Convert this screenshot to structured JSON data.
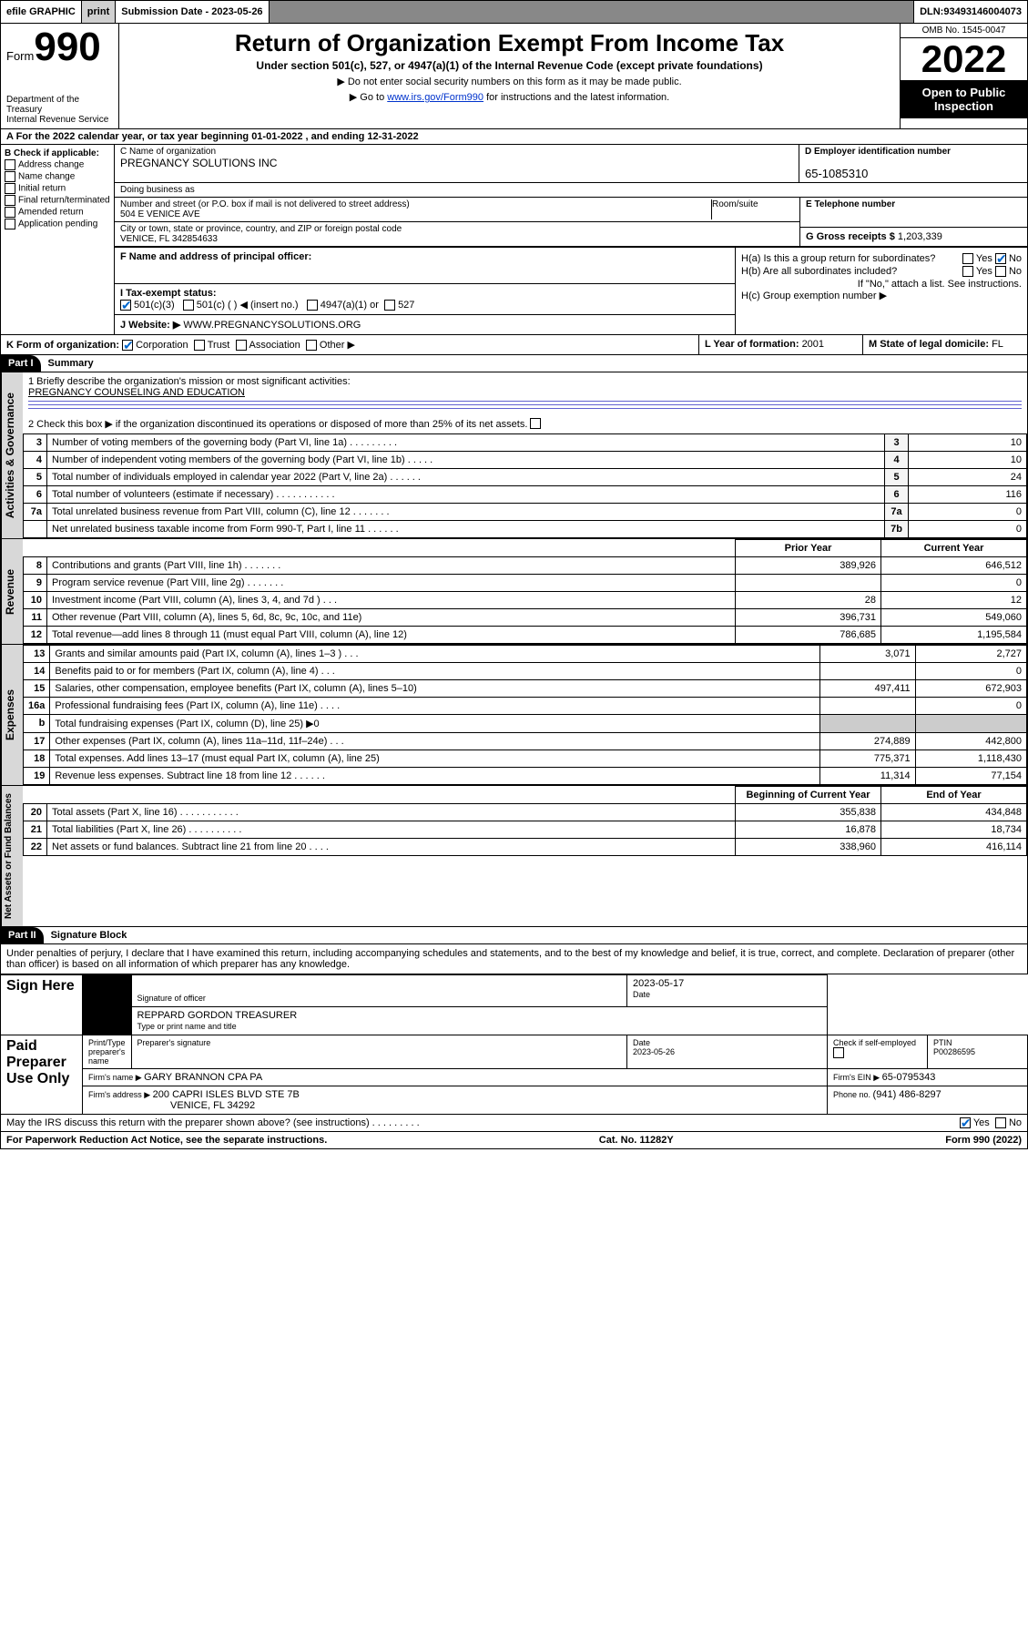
{
  "topbar": {
    "efile": "efile GRAPHIC",
    "print": "print",
    "subdate_label": "Submission Date - ",
    "subdate": "2023-05-26",
    "dln_label": "DLN: ",
    "dln": "93493146004073"
  },
  "header": {
    "form_word": "Form",
    "form_num": "990",
    "dept": "Department of the Treasury",
    "irs": "Internal Revenue Service",
    "title": "Return of Organization Exempt From Income Tax",
    "sub": "Under section 501(c), 527, or 4947(a)(1) of the Internal Revenue Code (except private foundations)",
    "note1": "▶ Do not enter social security numbers on this form as it may be made public.",
    "note2_pre": "▶ Go to ",
    "note2_link": "www.irs.gov/Form990",
    "note2_post": " for instructions and the latest information.",
    "omb": "OMB No. 1545-0047",
    "year": "2022",
    "open": "Open to Public Inspection"
  },
  "A": {
    "text": "A For the 2022 calendar year, or tax year beginning 01-01-2022    , and ending 12-31-2022"
  },
  "B": {
    "label": "B Check if applicable:",
    "items": [
      "Address change",
      "Name change",
      "Initial return",
      "Final return/terminated",
      "Amended return",
      "Application pending"
    ]
  },
  "C": {
    "name_label": "C Name of organization",
    "name": "PREGNANCY SOLUTIONS INC",
    "dba_label": "Doing business as",
    "street_label": "Number and street (or P.O. box if mail is not delivered to street address)",
    "room_label": "Room/suite",
    "street": "504 E VENICE AVE",
    "city_label": "City or town, state or province, country, and ZIP or foreign postal code",
    "city": "VENICE, FL  342854633"
  },
  "D": {
    "label": "D Employer identification number",
    "value": "65-1085310"
  },
  "E": {
    "label": "E Telephone number",
    "value": ""
  },
  "G": {
    "label": "G Gross receipts $ ",
    "value": "1,203,339"
  },
  "F": {
    "label": "F  Name and address of principal officer:"
  },
  "H": {
    "a_label": "H(a)  Is this a group return for subordinates?",
    "a_yes": "Yes",
    "a_no": "No",
    "b_label": "H(b)  Are all subordinates included?",
    "b_yes": "Yes",
    "b_no": "No",
    "b_note": "If \"No,\" attach a list. See instructions.",
    "c_label": "H(c)  Group exemption number ▶"
  },
  "I": {
    "label": "I     Tax-exempt status:",
    "o1": "501(c)(3)",
    "o2": "501(c) (  ) ◀ (insert no.)",
    "o3": "4947(a)(1) or",
    "o4": "527"
  },
  "J": {
    "label": "J    Website: ▶ ",
    "value": "WWW.PREGNANCYSOLUTIONS.ORG"
  },
  "K": {
    "label": "K Form of organization:",
    "o1": "Corporation",
    "o2": "Trust",
    "o3": "Association",
    "o4": "Other ▶"
  },
  "L": {
    "label": "L Year of formation: ",
    "value": "2001"
  },
  "M": {
    "label": "M State of legal domicile: ",
    "value": "FL"
  },
  "part1": {
    "hdr": "Part I",
    "title": "Summary"
  },
  "summary": {
    "l1_label": "1   Briefly describe the organization's mission or most significant activities:",
    "l1_value": "PREGNANCY COUNSELING AND EDUCATION",
    "l2": "2   Check this box ▶         if the organization discontinued its operations or disposed of more than 25% of its net assets.",
    "rows_gov": [
      {
        "n": "3",
        "desc": "Number of voting members of the governing body (Part VI, line 1a)   .    .    .    .    .    .    .    .    .",
        "box": "3",
        "val": "10"
      },
      {
        "n": "4",
        "desc": "Number of independent voting members of the governing body (Part VI, line 1b)   .    .    .    .    .",
        "box": "4",
        "val": "10"
      },
      {
        "n": "5",
        "desc": "Total number of individuals employed in calendar year 2022 (Part V, line 2a)   .    .    .    .    .    .",
        "box": "5",
        "val": "24"
      },
      {
        "n": "6",
        "desc": "Total number of volunteers (estimate if necessary)   .    .    .    .    .    .    .    .    .    .    .",
        "box": "6",
        "val": "116"
      },
      {
        "n": "7a",
        "desc": "Total unrelated business revenue from Part VIII, column (C), line 12   .    .    .    .    .    .    .",
        "box": "7a",
        "val": "0"
      },
      {
        "n": "",
        "desc": "Net unrelated business taxable income from Form 990-T, Part I, line 11   .    .    .    .    .    .",
        "box": "7b",
        "val": "0"
      }
    ],
    "hdr_prior": "Prior Year",
    "hdr_curr": "Current Year",
    "rows_rev": [
      {
        "n": "8",
        "desc": "Contributions and grants (Part VIII, line 1h)   .    .    .    .    .    .    .",
        "p": "389,926",
        "c": "646,512"
      },
      {
        "n": "9",
        "desc": "Program service revenue (Part VIII, line 2g)   .    .    .    .    .    .    .",
        "p": "",
        "c": "0"
      },
      {
        "n": "10",
        "desc": "Investment income (Part VIII, column (A), lines 3, 4, and 7d )   .    .    .",
        "p": "28",
        "c": "12"
      },
      {
        "n": "11",
        "desc": "Other revenue (Part VIII, column (A), lines 5, 6d, 8c, 9c, 10c, and 11e)",
        "p": "396,731",
        "c": "549,060"
      },
      {
        "n": "12",
        "desc": "Total revenue—add lines 8 through 11 (must equal Part VIII, column (A), line 12)",
        "p": "786,685",
        "c": "1,195,584"
      }
    ],
    "rows_exp": [
      {
        "n": "13",
        "desc": "Grants and similar amounts paid (Part IX, column (A), lines 1–3 )   .    .    .",
        "p": "3,071",
        "c": "2,727"
      },
      {
        "n": "14",
        "desc": "Benefits paid to or for members (Part IX, column (A), line 4)   .    .    .",
        "p": "",
        "c": "0"
      },
      {
        "n": "15",
        "desc": "Salaries, other compensation, employee benefits (Part IX, column (A), lines 5–10)",
        "p": "497,411",
        "c": "672,903"
      },
      {
        "n": "16a",
        "desc": "Professional fundraising fees (Part IX, column (A), line 11e)   .    .    .    .",
        "p": "",
        "c": "0"
      },
      {
        "n": "b",
        "desc": "Total fundraising expenses (Part IX, column (D), line 25) ▶0",
        "p": "—",
        "c": "—"
      },
      {
        "n": "17",
        "desc": "Other expenses (Part IX, column (A), lines 11a–11d, 11f–24e)   .    .    .",
        "p": "274,889",
        "c": "442,800"
      },
      {
        "n": "18",
        "desc": "Total expenses. Add lines 13–17 (must equal Part IX, column (A), line 25)",
        "p": "775,371",
        "c": "1,118,430"
      },
      {
        "n": "19",
        "desc": "Revenue less expenses. Subtract line 18 from line 12   .    .    .    .    .    .",
        "p": "11,314",
        "c": "77,154"
      }
    ],
    "hdr_begin": "Beginning of Current Year",
    "hdr_end": "End of Year",
    "rows_net": [
      {
        "n": "20",
        "desc": "Total assets (Part X, line 16)   .    .    .    .    .    .    .    .    .    .    .",
        "p": "355,838",
        "c": "434,848"
      },
      {
        "n": "21",
        "desc": "Total liabilities (Part X, line 26)   .    .    .    .    .    .    .    .    .    .",
        "p": "16,878",
        "c": "18,734"
      },
      {
        "n": "22",
        "desc": "Net assets or fund balances. Subtract line 21 from line 20   .    .    .    .",
        "p": "338,960",
        "c": "416,114"
      }
    ]
  },
  "part2": {
    "hdr": "Part II",
    "title": "Signature Block"
  },
  "sig": {
    "perjury": "Under penalties of perjury, I declare that I have examined this return, including accompanying schedules and statements, and to the best of my knowledge and belief, it is true, correct, and complete. Declaration of preparer (other than officer) is based on all information of which preparer has any knowledge.",
    "sign_here": "Sign Here",
    "sig_officer": "Signature of officer",
    "sig_date": "2023-05-17",
    "date_label": "Date",
    "name_title": "REPPARD GORDON  TREASURER",
    "type_label": "Type or print name and title",
    "paid": "Paid Preparer Use Only",
    "prep_name_label": "Print/Type preparer's name",
    "prep_sig_label": "Preparer's signature",
    "prep_date_label": "Date",
    "prep_date": "2023-05-26",
    "check_self": "Check         if self-employed",
    "ptin_label": "PTIN",
    "ptin": "P00286595",
    "firm_name_label": "Firm's name      ▶ ",
    "firm_name": "GARY BRANNON CPA PA",
    "firm_ein_label": "Firm's EIN ▶ ",
    "firm_ein": "65-0795343",
    "firm_addr_label": "Firm's address ▶ ",
    "firm_addr1": "200 CAPRI ISLES BLVD STE 7B",
    "firm_addr2": "VENICE, FL  34292",
    "phone_label": "Phone no. ",
    "phone": "(941) 486-8297",
    "may_irs": "May the IRS discuss this return with the preparer shown above? (see instructions)   .    .    .    .    .    .    .    .    .",
    "yes": "Yes",
    "no": "No"
  },
  "foot": {
    "left": "For Paperwork Reduction Act Notice, see the separate instructions.",
    "mid": "Cat. No. 11282Y",
    "right": "Form 990 (2022)"
  }
}
